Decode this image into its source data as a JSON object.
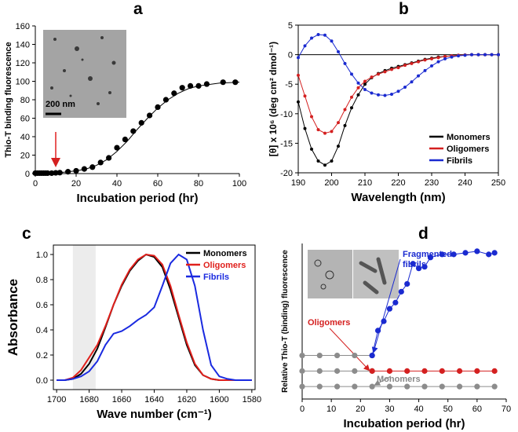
{
  "chart_data": [
    {
      "type": "scatter",
      "title": "a",
      "xlabel": "Incubation period (hr)",
      "ylabel": "Thio-T binding fluorescence",
      "xlim": [
        0,
        100
      ],
      "xticks": [
        0,
        20,
        40,
        60,
        80,
        100
      ],
      "ylim": [
        0,
        160
      ],
      "yticks": [
        0,
        20,
        40,
        60,
        80,
        100,
        120,
        140,
        160
      ],
      "annotation": "200 nm",
      "series": [
        {
          "mode": "markers",
          "color": "#000000",
          "x": [
            0,
            1,
            2,
            3,
            4,
            5,
            6,
            8,
            10,
            12,
            16,
            20,
            24,
            28,
            32,
            36,
            40,
            44,
            48,
            52,
            56,
            60,
            64,
            68,
            72,
            76,
            80,
            84,
            92,
            98
          ],
          "values": [
            0.5,
            0.5,
            0.5,
            0.5,
            0.5,
            0.5,
            0.5,
            0.5,
            0.8,
            1,
            2,
            3,
            5,
            7,
            12,
            17,
            28,
            37,
            46,
            55,
            63,
            72,
            80,
            87,
            93,
            95,
            95,
            97,
            99,
            99
          ]
        },
        {
          "mode": "lines",
          "color": "#000000",
          "x": [
            0,
            10,
            20,
            25,
            30,
            35,
            40,
            45,
            50,
            55,
            60,
            65,
            70,
            75,
            80,
            90,
            100
          ],
          "values": [
            0,
            0.5,
            3,
            5,
            9,
            15,
            24,
            35,
            48,
            60,
            71,
            80,
            87,
            92,
            95,
            98,
            99
          ]
        }
      ]
    },
    {
      "type": "line",
      "title": "b",
      "xlabel": "Wavelength (nm)",
      "ylabel": "[θ] x 10⁶ (deg cm² dmol⁻¹)",
      "xlim": [
        190,
        250
      ],
      "xticks": [
        190,
        200,
        210,
        220,
        230,
        240,
        250
      ],
      "ylim": [
        -20,
        5
      ],
      "yticks": [
        -20,
        -15,
        -10,
        -5,
        0,
        5
      ],
      "zero_line": true,
      "legend": "lower right",
      "x": [
        190,
        192,
        194,
        196,
        198,
        200,
        202,
        204,
        206,
        208,
        210,
        212,
        214,
        216,
        218,
        220,
        222,
        224,
        226,
        228,
        230,
        232,
        234,
        236,
        238,
        240,
        242,
        244,
        246,
        248,
        250
      ],
      "series": [
        {
          "name": "Monomers",
          "color": "#000000",
          "mode": "lines+markers",
          "values": [
            -8,
            -12.5,
            -16,
            -18,
            -18.7,
            -18,
            -15.5,
            -12,
            -9,
            -6.8,
            -5,
            -3.9,
            -3.2,
            -2.7,
            -2.3,
            -2,
            -1.7,
            -1.4,
            -1.1,
            -0.8,
            -0.6,
            -0.4,
            -0.3,
            -0.2,
            -0.1,
            -0.05,
            0,
            0,
            0,
            0,
            0
          ]
        },
        {
          "name": "Oligomers",
          "color": "#d42020",
          "mode": "lines+markers",
          "values": [
            -3.5,
            -7,
            -10.5,
            -12.7,
            -13.3,
            -13,
            -11.5,
            -9.3,
            -7.2,
            -5.6,
            -4.5,
            -3.8,
            -3.3,
            -2.9,
            -2.5,
            -2.2,
            -1.8,
            -1.5,
            -1.2,
            -0.9,
            -0.7,
            -0.5,
            -0.3,
            -0.2,
            -0.1,
            -0.05,
            0,
            0,
            0,
            0,
            0
          ]
        },
        {
          "name": "Fibrils",
          "color": "#1a2ad0",
          "mode": "lines+markers",
          "values": [
            -0.5,
            1.5,
            2.8,
            3.4,
            3.3,
            2.3,
            0.5,
            -1.5,
            -3.3,
            -4.8,
            -5.9,
            -6.5,
            -6.8,
            -6.9,
            -6.7,
            -6.2,
            -5.5,
            -4.6,
            -3.6,
            -2.7,
            -1.9,
            -1.2,
            -0.7,
            -0.4,
            -0.2,
            -0.1,
            0,
            0,
            0,
            0,
            0
          ]
        }
      ]
    },
    {
      "type": "line",
      "title": "c",
      "xlabel": "Wave number (cm⁻¹)",
      "ylabel": "Absorbance",
      "xlim": [
        1702,
        1578
      ],
      "xticks": [
        1700,
        1680,
        1660,
        1640,
        1620,
        1600,
        1580
      ],
      "ylim": [
        -0.075,
        1.075
      ],
      "yticks": [
        {
          "value": 0,
          "label": "0.0"
        },
        0.2,
        0.4,
        0.6,
        0.8,
        {
          "value": 1,
          "label": "1.0"
        }
      ],
      "highlight_xrange": [
        1690,
        1676
      ],
      "legend": "upper right",
      "x": [
        1700,
        1695,
        1690,
        1685,
        1680,
        1675,
        1670,
        1665,
        1660,
        1655,
        1650,
        1645,
        1640,
        1635,
        1630,
        1625,
        1620,
        1615,
        1610,
        1605,
        1600,
        1595,
        1590,
        1585,
        1580
      ],
      "series": [
        {
          "name": "Monomers",
          "color": "#000000",
          "mode": "lines",
          "values": [
            0,
            0,
            0.01,
            0.05,
            0.13,
            0.25,
            0.42,
            0.6,
            0.75,
            0.87,
            0.95,
            1.0,
            0.98,
            0.9,
            0.72,
            0.5,
            0.28,
            0.12,
            0.04,
            0.01,
            0,
            0,
            0,
            0,
            0
          ]
        },
        {
          "name": "Oligomers",
          "color": "#e0201c",
          "mode": "lines",
          "values": [
            0,
            0,
            0.02,
            0.08,
            0.18,
            0.28,
            0.43,
            0.6,
            0.76,
            0.88,
            0.96,
            1.0,
            0.99,
            0.92,
            0.75,
            0.52,
            0.3,
            0.13,
            0.04,
            0.01,
            0,
            0,
            0,
            0,
            0
          ]
        },
        {
          "name": "Fibrils",
          "color": "#1a2ae0",
          "mode": "lines",
          "values": [
            0,
            0,
            0.01,
            0.03,
            0.07,
            0.15,
            0.28,
            0.37,
            0.39,
            0.43,
            0.48,
            0.52,
            0.58,
            0.75,
            0.93,
            1.0,
            0.96,
            0.75,
            0.4,
            0.12,
            0.03,
            0.01,
            0,
            0,
            0
          ]
        }
      ]
    },
    {
      "type": "scatter",
      "title": "d",
      "xlabel": "Incubation period (hr)",
      "ylabel": "Relative Thio-T (binding) fluorescence",
      "xlim": [
        0,
        70
      ],
      "xticks": [
        0,
        10,
        20,
        30,
        40,
        50,
        60,
        70
      ],
      "ylim": [
        0,
        1
      ],
      "series": [
        {
          "color": "#8c8c8c",
          "mode": "lines+markers",
          "x": [
            0,
            6,
            12,
            18,
            24
          ],
          "values": [
            0.28,
            0.28,
            0.28,
            0.28,
            0.28
          ]
        },
        {
          "color": "#8c8c8c",
          "mode": "lines+markers",
          "x": [
            0,
            6,
            12,
            18,
            24
          ],
          "values": [
            0.18,
            0.18,
            0.18,
            0.18,
            0.18
          ]
        },
        {
          "name": "Monomers",
          "color": "#8c8c8c",
          "mode": "lines+markers",
          "x": [
            0,
            6,
            12,
            18,
            24,
            30,
            36,
            42,
            48,
            54,
            60,
            66
          ],
          "values": [
            0.08,
            0.08,
            0.08,
            0.08,
            0.08,
            0.08,
            0.08,
            0.08,
            0.08,
            0.08,
            0.08,
            0.08
          ]
        },
        {
          "name": "Oligomers",
          "color": "#d42020",
          "mode": "lines+markers",
          "x": [
            24,
            30,
            36,
            42,
            48,
            54,
            60,
            66
          ],
          "values": [
            0.18,
            0.18,
            0.18,
            0.18,
            0.18,
            0.18,
            0.18,
            0.18
          ]
        },
        {
          "name": "Fragmented fibrils",
          "color": "#1a2ad0",
          "mode": "lines+markers",
          "x": [
            24,
            26,
            28,
            30,
            32,
            34,
            36,
            38,
            40,
            42,
            44,
            48,
            52,
            56,
            60,
            64,
            66
          ],
          "values": [
            0.28,
            0.44,
            0.5,
            0.58,
            0.62,
            0.69,
            0.74,
            0.87,
            0.84,
            0.85,
            0.91,
            0.93,
            0.93,
            0.94,
            0.95,
            0.93,
            0.94
          ]
        }
      ]
    }
  ]
}
